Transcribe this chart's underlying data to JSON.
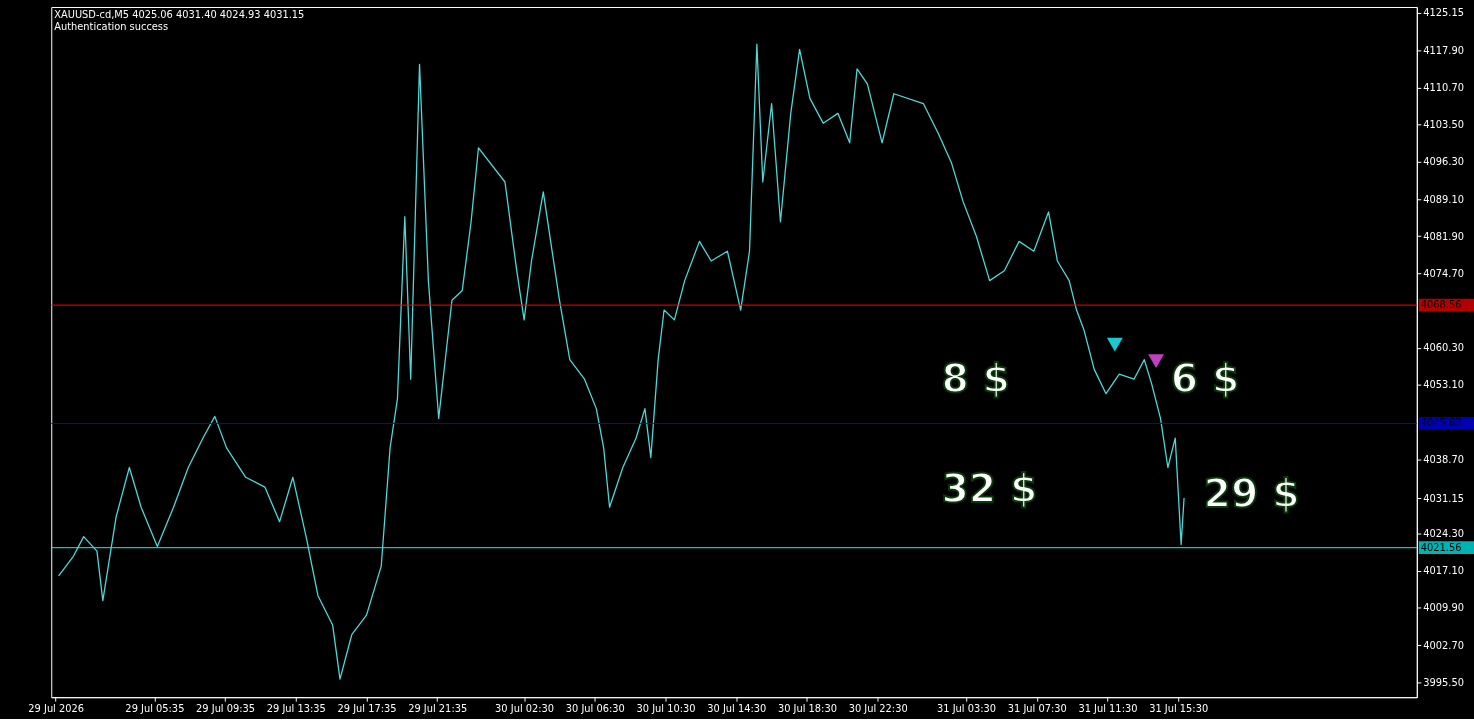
{
  "chart_data": {
    "type": "line",
    "annotations": [
      "XAUUSD-cd,M5  4025.06 4031.40 4024.93 4031.15",
      "Authentication success",
      "8 $",
      "6 $",
      "32 $",
      "29 $"
    ],
    "xlim": [
      "2026-07-28T23:45",
      "2026-08-01T05:00"
    ],
    "ylim": [
      3992.6,
      4126.3
    ],
    "xticks": [
      {
        "value": "2026-07-29T00:00",
        "label": "29 Jul 2026"
      },
      {
        "value": "2026-07-29T05:35",
        "label": "29 Jul 05:35"
      },
      {
        "value": "2026-07-29T09:35",
        "label": "29 Jul 09:35"
      },
      {
        "value": "2026-07-29T13:35",
        "label": "29 Jul 13:35"
      },
      {
        "value": "2026-07-29T17:35",
        "label": "29 Jul 17:35"
      },
      {
        "value": "2026-07-29T21:35",
        "label": "29 Jul 21:35"
      },
      {
        "value": "2026-07-30T02:30",
        "label": "30 Jul 02:30"
      },
      {
        "value": "2026-07-30T06:30",
        "label": "30 Jul 06:30"
      },
      {
        "value": "2026-07-30T10:30",
        "label": "30 Jul 10:30"
      },
      {
        "value": "2026-07-30T14:30",
        "label": "30 Jul 14:30"
      },
      {
        "value": "2026-07-30T18:30",
        "label": "30 Jul 18:30"
      },
      {
        "value": "2026-07-30T22:30",
        "label": "30 Jul 22:30"
      },
      {
        "value": "2026-07-31T03:30",
        "label": "31 Jul 03:30"
      },
      {
        "value": "2026-07-31T07:30",
        "label": "31 Jul 07:30"
      },
      {
        "value": "2026-07-31T11:30",
        "label": "31 Jul 11:30"
      },
      {
        "value": "2026-07-31T15:30",
        "label": "31 Jul 15:30"
      }
    ],
    "yticks": [
      {
        "value": 4125.15,
        "label": "4125.15"
      },
      {
        "value": 4117.9,
        "label": "4117.90"
      },
      {
        "value": 4110.7,
        "label": "4110.70"
      },
      {
        "value": 4103.5,
        "label": "4103.50"
      },
      {
        "value": 4096.3,
        "label": "4096.30"
      },
      {
        "value": 4089.1,
        "label": "4089.10"
      },
      {
        "value": 4081.9,
        "label": "4081.90"
      },
      {
        "value": 4074.7,
        "label": "4074.70"
      },
      {
        "value": 4060.3,
        "label": "4060.30"
      },
      {
        "value": 4053.1,
        "label": "4053.10"
      },
      {
        "value": 4038.7,
        "label": "4038.70"
      },
      {
        "value": 4031.15,
        "label": "4031.15"
      },
      {
        "value": 4024.3,
        "label": "4024.30"
      },
      {
        "value": 4017.1,
        "label": "4017.10"
      },
      {
        "value": 4009.9,
        "label": "4009.90"
      },
      {
        "value": 4002.7,
        "label": "4002.70"
      },
      {
        "value": 3995.5,
        "label": "3995.50"
      }
    ],
    "ref_lines": [
      {
        "axis": "y",
        "value": 4068.56,
        "label": "4068.56",
        "color": "#ff0000"
      },
      {
        "axis": "y",
        "value": 4045.63,
        "label": "4045.63",
        "color": "#0000ff"
      },
      {
        "axis": "y",
        "value": 4021.56,
        "label": "4021.56",
        "color": "#00ffff"
      }
    ],
    "grid": false,
    "series": [
      {
        "color": "#4fd8d8",
        "x": [
          "2026-07-29T00:10",
          "2026-07-29T01:00",
          "2026-07-29T01:35",
          "2026-07-29T02:20",
          "2026-07-29T02:40",
          "2026-07-29T03:25",
          "2026-07-29T04:10",
          "2026-07-29T04:50",
          "2026-07-29T05:45",
          "2026-07-29T06:40",
          "2026-07-29T07:30",
          "2026-07-29T08:20",
          "2026-07-29T09:00",
          "2026-07-29T09:40",
          "2026-07-29T10:45",
          "2026-07-29T11:50",
          "2026-07-29T12:40",
          "2026-07-29T13:25",
          "2026-07-29T14:10",
          "2026-07-29T14:50",
          "2026-07-29T15:40",
          "2026-07-29T16:05",
          "2026-07-29T16:45",
          "2026-07-29T17:35",
          "2026-07-29T18:25",
          "2026-07-29T18:55",
          "2026-07-29T19:20",
          "2026-07-29T19:45",
          "2026-07-29T20:05",
          "2026-07-29T20:35",
          "2026-07-29T21:05",
          "2026-07-29T21:40",
          "2026-07-29T22:25",
          "2026-07-29T23:00",
          "2026-07-29T23:30",
          "2026-07-29T23:55",
          "2026-07-30T01:25",
          "2026-07-30T02:05",
          "2026-07-30T02:30",
          "2026-07-30T02:55",
          "2026-07-30T03:35",
          "2026-07-30T04:00",
          "2026-07-30T04:30",
          "2026-07-30T05:05",
          "2026-07-30T05:55",
          "2026-07-30T06:35",
          "2026-07-30T07:00",
          "2026-07-30T07:20",
          "2026-07-30T08:05",
          "2026-07-30T08:50",
          "2026-07-30T09:20",
          "2026-07-30T09:40",
          "2026-07-30T10:05",
          "2026-07-30T10:25",
          "2026-07-30T11:00",
          "2026-07-30T11:35",
          "2026-07-30T12:25",
          "2026-07-30T13:05",
          "2026-07-30T14:00",
          "2026-07-30T14:45",
          "2026-07-30T15:15",
          "2026-07-30T15:40",
          "2026-07-30T16:00",
          "2026-07-30T16:30",
          "2026-07-30T17:00",
          "2026-07-30T17:35",
          "2026-07-30T18:05",
          "2026-07-30T18:40",
          "2026-07-30T19:25",
          "2026-07-30T20:15",
          "2026-07-30T20:55",
          "2026-07-30T21:20",
          "2026-07-30T21:55",
          "2026-07-30T22:45",
          "2026-07-30T23:25",
          "2026-07-31T01:05",
          "2026-07-31T01:55",
          "2026-07-31T02:40",
          "2026-07-31T03:20",
          "2026-07-31T04:05",
          "2026-07-31T04:50",
          "2026-07-31T05:40",
          "2026-07-31T06:30",
          "2026-07-31T07:20",
          "2026-07-31T08:10",
          "2026-07-31T08:40",
          "2026-07-31T09:20",
          "2026-07-31T09:45",
          "2026-07-31T10:10",
          "2026-07-31T10:45",
          "2026-07-31T11:25",
          "2026-07-31T12:10",
          "2026-07-31T13:00",
          "2026-07-31T13:35",
          "2026-07-31T14:00",
          "2026-07-31T14:30",
          "2026-07-31T14:55",
          "2026-07-31T15:20",
          "2026-07-31T15:40",
          "2026-07-31T15:50"
        ],
        "values": [
          4016.1,
          4019.9,
          4023.7,
          4020.9,
          4011.3,
          4027.5,
          4037.1,
          4029.4,
          4021.8,
          4029.4,
          4037.1,
          4042.8,
          4047.0,
          4040.9,
          4035.2,
          4033.3,
          4026.6,
          4035.2,
          4023.7,
          4012.3,
          4006.6,
          3996.1,
          4004.7,
          4008.5,
          4018.0,
          4040.9,
          4050.4,
          4085.7,
          4054.2,
          4115.2,
          4073.3,
          4046.6,
          4069.5,
          4071.4,
          4084.7,
          4099.0,
          4092.4,
          4075.2,
          4065.7,
          4077.1,
          4090.5,
          4080.9,
          4069.5,
          4058.0,
          4054.2,
          4048.5,
          4040.9,
          4029.4,
          4037.1,
          4042.8,
          4048.5,
          4039.0,
          4058.0,
          4067.6,
          4065.7,
          4073.3,
          4080.9,
          4077.1,
          4079.0,
          4067.6,
          4079.0,
          4119.1,
          4092.4,
          4107.6,
          4084.7,
          4105.7,
          4118.1,
          4108.6,
          4103.8,
          4105.7,
          4100.0,
          4114.3,
          4111.4,
          4100.0,
          4109.5,
          4107.6,
          4101.9,
          4096.2,
          4088.6,
          4081.9,
          4073.3,
          4075.2,
          4080.9,
          4079.0,
          4086.6,
          4077.1,
          4073.3,
          4067.6,
          4063.8,
          4056.1,
          4051.4,
          4055.2,
          4054.2,
          4058.0,
          4053.3,
          4046.6,
          4037.1,
          4042.8,
          4022.2,
          4031.2
        ]
      },
      {
        "type": "scatter",
        "marker": "triangle",
        "color": "#19c8d2",
        "x": [
          "2026-07-31T11:55"
        ],
        "values": [
          4060.9
        ]
      },
      {
        "type": "scatter",
        "marker": "triangle",
        "color": "#c040c0",
        "x": [
          "2026-07-31T14:15"
        ],
        "values": [
          4057.7
        ]
      }
    ]
  }
}
